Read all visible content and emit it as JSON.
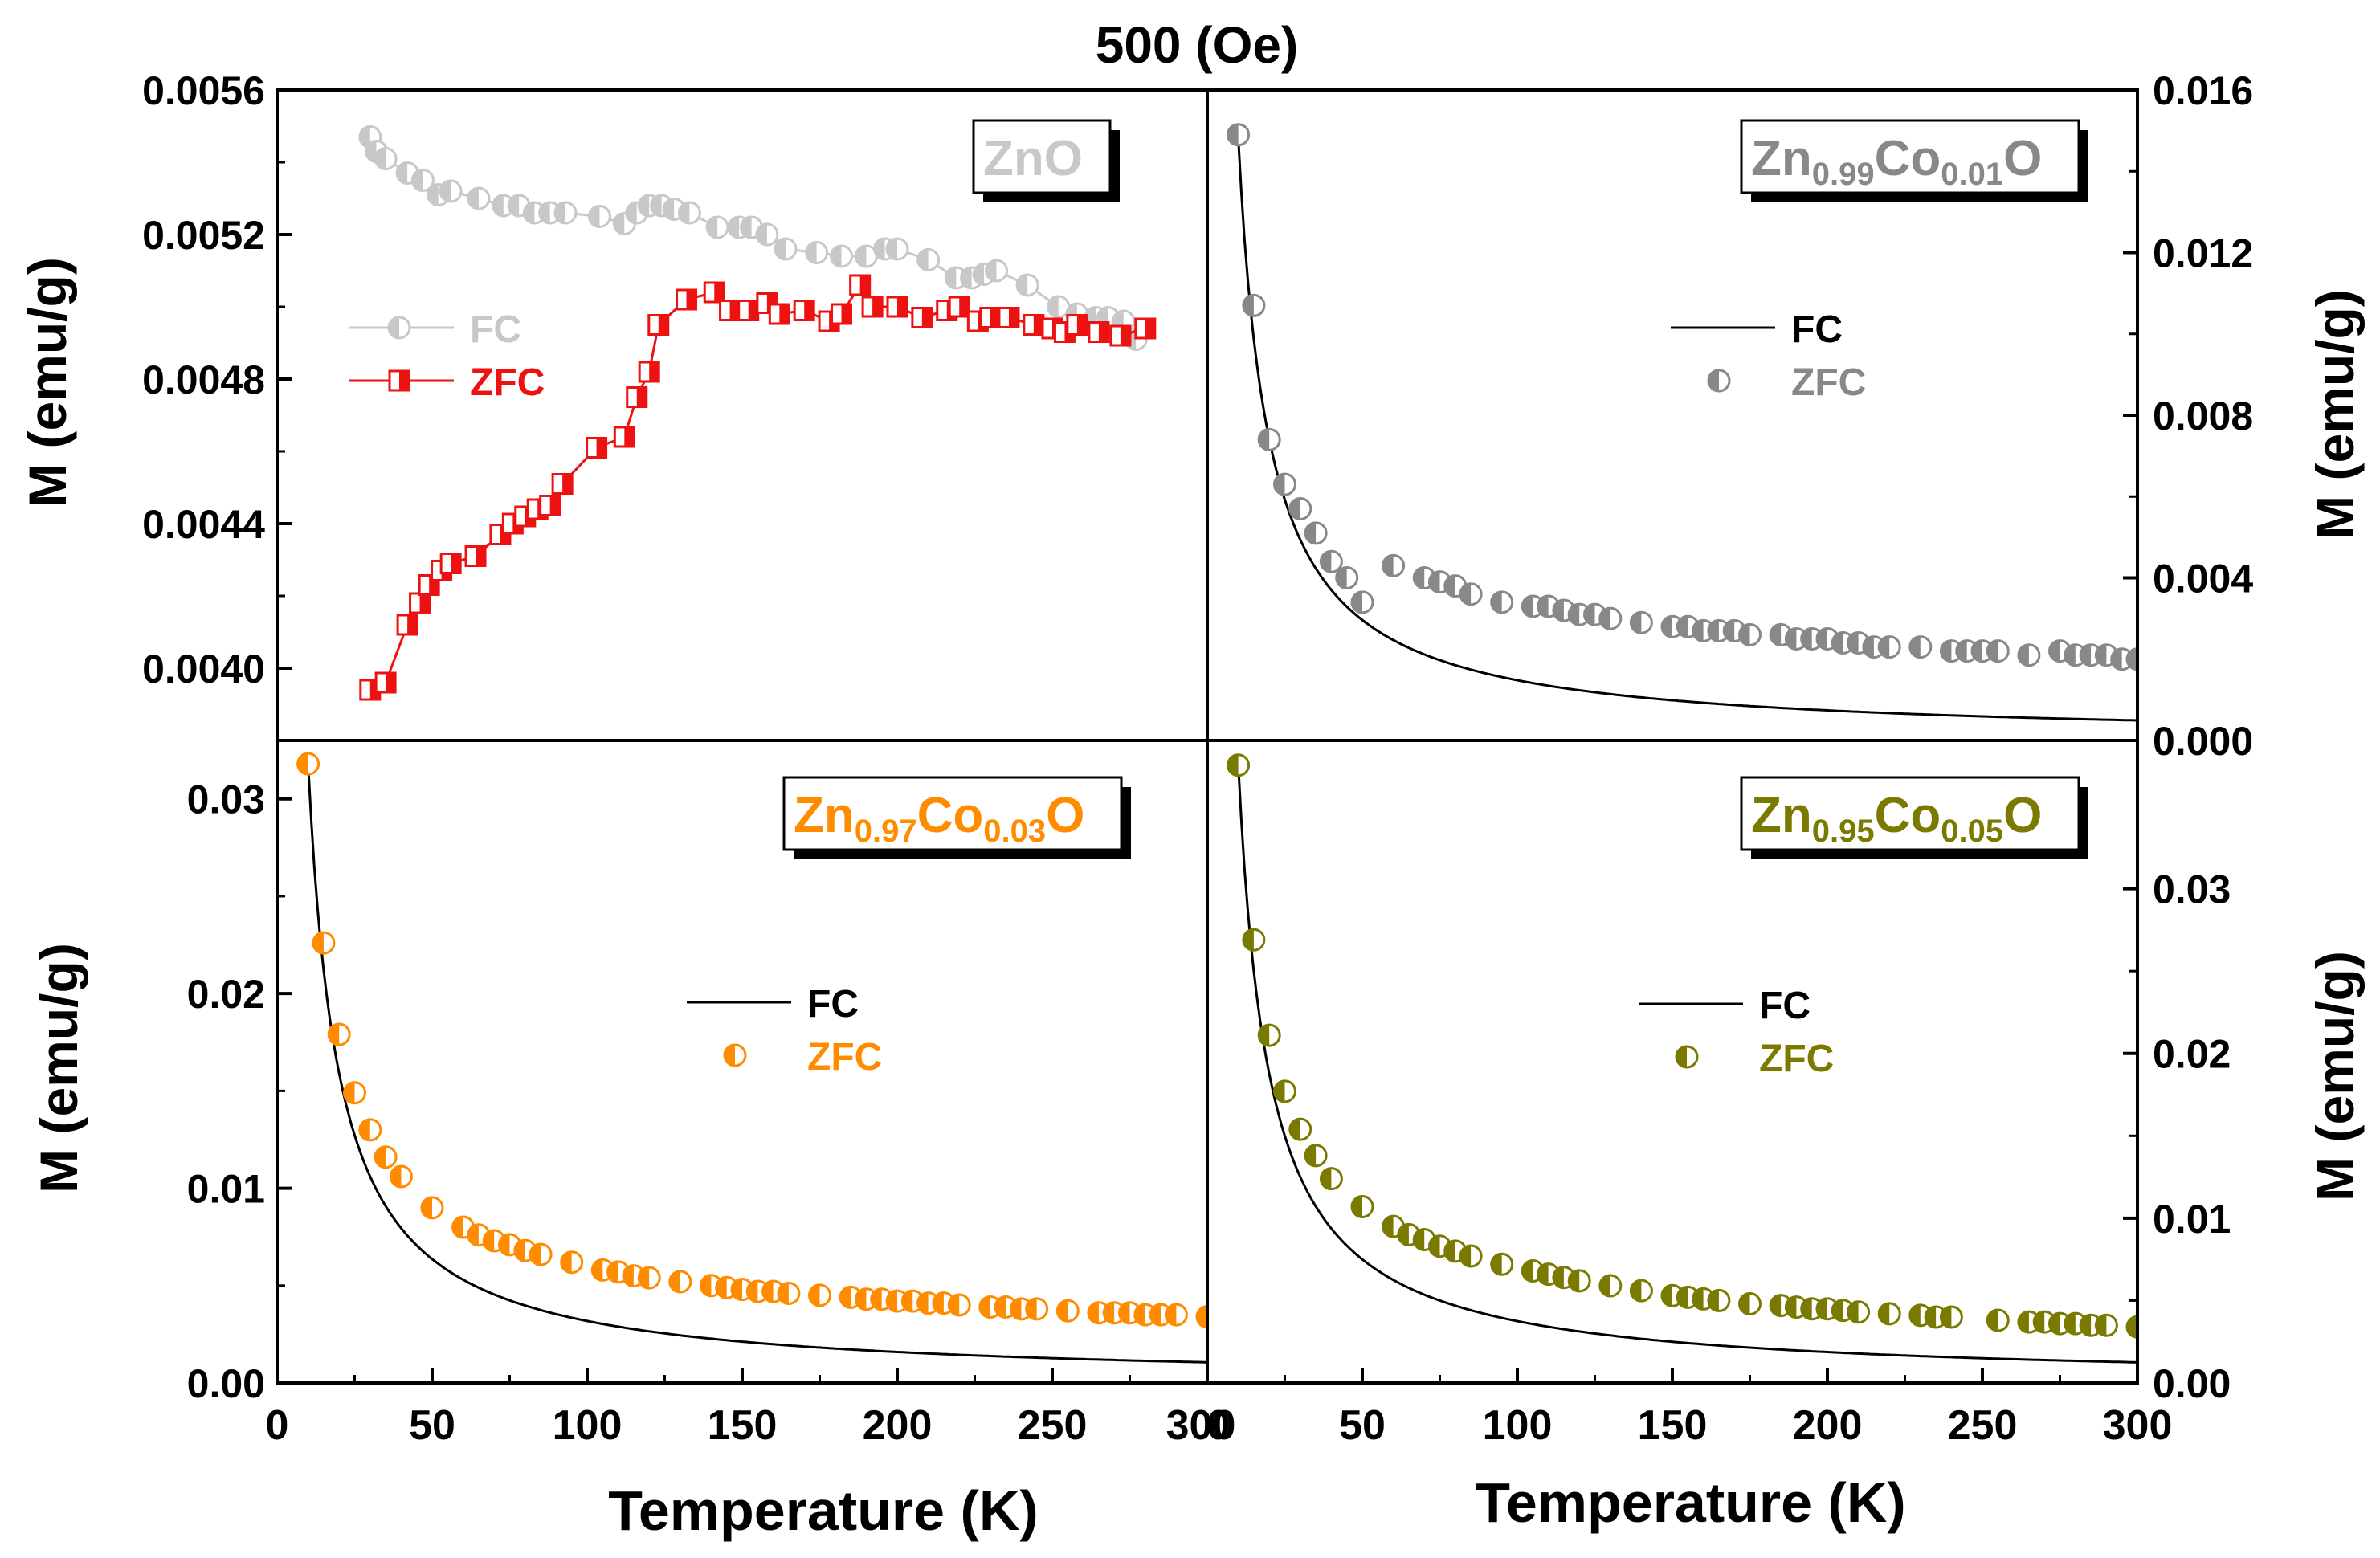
{
  "figure": {
    "title": "500 (Oe)",
    "xlabel": "Temperature (K)",
    "ylabel": "M (emu/g)"
  },
  "colors": {
    "axis": "#000000",
    "znO_fc": "#c8c8c8",
    "znO_zfc": "#ee1111",
    "co001": "#888888",
    "co003": "#ff8c00",
    "co005": "#7a7a00",
    "fit": "#000000"
  },
  "chart_data": [
    {
      "type": "line",
      "panel": "top-left",
      "label_main": "ZnO",
      "xlim": [
        0,
        300
      ],
      "ylim": [
        0.0038,
        0.0056
      ],
      "yticks": [
        "0.0040",
        "0.0044",
        "0.0048",
        "0.0052",
        "0.0056"
      ],
      "ytick_values": [
        0.004,
        0.0044,
        0.0048,
        0.0052,
        0.0056
      ],
      "xlabel": "",
      "ylabel": "M (emu/g)",
      "legend_position": "upper-left",
      "series": [
        {
          "name": "FC",
          "marker": "circle-half",
          "line": true,
          "x": [
            30,
            32,
            35,
            42,
            47,
            52,
            56,
            65,
            73,
            78,
            83,
            88,
            93,
            104,
            112,
            116,
            120,
            124,
            128,
            133,
            142,
            149,
            153,
            158,
            164,
            174,
            182,
            190,
            196,
            200,
            210,
            219,
            224,
            228,
            232,
            242,
            252,
            258,
            264,
            268,
            273,
            277
          ],
          "y": [
            0.00547,
            0.00543,
            0.00541,
            0.00537,
            0.00535,
            0.00531,
            0.00532,
            0.0053,
            0.00528,
            0.00528,
            0.00526,
            0.00526,
            0.00526,
            0.00525,
            0.00523,
            0.00526,
            0.00528,
            0.00528,
            0.00527,
            0.00526,
            0.00522,
            0.00522,
            0.00522,
            0.0052,
            0.00516,
            0.00515,
            0.00514,
            0.00514,
            0.00516,
            0.00516,
            0.00513,
            0.00508,
            0.00508,
            0.00509,
            0.0051,
            0.00506,
            0.005,
            0.00498,
            0.00497,
            0.00497,
            0.00496,
            0.00491
          ]
        },
        {
          "name": "ZFC",
          "marker": "square-half",
          "line": true,
          "x": [
            30,
            35,
            42,
            46,
            49,
            53,
            56,
            64,
            72,
            76,
            80,
            84,
            88,
            92,
            103,
            112,
            116,
            120,
            123,
            132,
            141,
            146,
            152,
            158,
            162,
            170,
            178,
            182,
            188,
            192,
            200,
            208,
            216,
            220,
            226,
            230,
            236,
            244,
            250,
            254,
            258,
            265,
            272,
            280
          ],
          "y": [
            0.00394,
            0.00396,
            0.00412,
            0.00418,
            0.00423,
            0.00427,
            0.00429,
            0.00431,
            0.00437,
            0.0044,
            0.00442,
            0.00444,
            0.00445,
            0.00451,
            0.00461,
            0.00464,
            0.00475,
            0.00482,
            0.00495,
            0.00502,
            0.00504,
            0.00499,
            0.00499,
            0.00501,
            0.00498,
            0.00499,
            0.00496,
            0.00498,
            0.00506,
            0.005,
            0.005,
            0.00497,
            0.00499,
            0.005,
            0.00496,
            0.00497,
            0.00497,
            0.00495,
            0.00494,
            0.00493,
            0.00495,
            0.00493,
            0.00492,
            0.00494
          ]
        }
      ]
    },
    {
      "type": "line",
      "panel": "top-right",
      "label_main": "Zn",
      "label_sub1": "0.99",
      "label_mid": "Co",
      "label_sub2": "0.01",
      "label_end": "O",
      "xlim": [
        0,
        300
      ],
      "ylim": [
        0,
        0.016
      ],
      "yticks": [
        "0.000",
        "0.004",
        "0.008",
        "0.012",
        "0.016"
      ],
      "ytick_values": [
        0.0,
        0.004,
        0.008,
        0.012,
        0.016
      ],
      "xlabel": "Temperature (K)",
      "xticks": [
        "0",
        "50",
        "100",
        "150",
        "200",
        "250",
        "300"
      ],
      "xtick_values": [
        0,
        50,
        100,
        150,
        200,
        250,
        300
      ],
      "ylabel": "M (emu/g)",
      "legend_position": "center",
      "series": [
        {
          "name": "FC",
          "marker": "none",
          "line": true,
          "model": {
            "A": 0.1481,
            "k": 0.0
          }
        },
        {
          "name": "ZFC",
          "marker": "circle-half",
          "line": false,
          "x": [
            10,
            15,
            20,
            25,
            30,
            35,
            40,
            45,
            50,
            60,
            70,
            75,
            80,
            85,
            95,
            105,
            110,
            115,
            120,
            125,
            130,
            140,
            150,
            155,
            160,
            165,
            170,
            175,
            185,
            190,
            195,
            200,
            205,
            210,
            215,
            220,
            230,
            240,
            245,
            250,
            255,
            265,
            275,
            280,
            285,
            290,
            295,
            300
          ],
          "y": [
            0.0149,
            0.0107,
            0.0074,
            0.0063,
            0.0057,
            0.0051,
            0.0044,
            0.004,
            0.0034,
            0.0043,
            0.004,
            0.0039,
            0.0038,
            0.0036,
            0.0034,
            0.0033,
            0.0033,
            0.0032,
            0.0031,
            0.0031,
            0.003,
            0.0029,
            0.0028,
            0.0028,
            0.0027,
            0.0027,
            0.0027,
            0.0026,
            0.0026,
            0.0025,
            0.0025,
            0.0025,
            0.0024,
            0.0024,
            0.0023,
            0.0023,
            0.0023,
            0.0022,
            0.0022,
            0.0022,
            0.0022,
            0.0021,
            0.0022,
            0.0021,
            0.0021,
            0.0021,
            0.002,
            0.002
          ]
        }
      ]
    },
    {
      "type": "line",
      "panel": "bottom-left",
      "label_main": "Zn",
      "label_sub1": "0.97",
      "label_mid": "Co",
      "label_sub2": "0.03",
      "label_end": "O",
      "xlim": [
        0,
        300
      ],
      "ylim": [
        0,
        0.033
      ],
      "yticks": [
        "0.00",
        "0.01",
        "0.02",
        "0.03"
      ],
      "ytick_values": [
        0.0,
        0.01,
        0.02,
        0.03
      ],
      "xlabel": "Temperature (K)",
      "xticks": [
        "0",
        "50",
        "100",
        "150",
        "200",
        "250",
        "300"
      ],
      "xtick_values": [
        0,
        50,
        100,
        150,
        200,
        250,
        300
      ],
      "ylabel": "M (emu/g)",
      "legend_position": "center",
      "series": [
        {
          "name": "FC",
          "marker": "none",
          "line": true,
          "model": {
            "A": 0.318,
            "k": 0.0
          }
        },
        {
          "name": "ZFC",
          "marker": "circle-half",
          "line": false,
          "x": [
            10,
            15,
            20,
            25,
            30,
            35,
            40,
            50,
            60,
            65,
            70,
            75,
            80,
            85,
            95,
            105,
            110,
            115,
            120,
            130,
            140,
            145,
            150,
            155,
            160,
            165,
            175,
            185,
            190,
            195,
            200,
            205,
            210,
            215,
            220,
            230,
            235,
            240,
            245,
            255,
            265,
            270,
            275,
            280,
            285,
            290,
            300
          ],
          "y": [
            0.0318,
            0.0226,
            0.0179,
            0.0149,
            0.013,
            0.0116,
            0.0106,
            0.009,
            0.008,
            0.0076,
            0.0073,
            0.0071,
            0.0068,
            0.0066,
            0.0062,
            0.0058,
            0.0057,
            0.0055,
            0.0054,
            0.0052,
            0.005,
            0.0049,
            0.0048,
            0.0047,
            0.0047,
            0.0046,
            0.0045,
            0.0044,
            0.0043,
            0.0043,
            0.0042,
            0.0042,
            0.0041,
            0.0041,
            0.004,
            0.0039,
            0.0039,
            0.0038,
            0.0038,
            0.0037,
            0.0036,
            0.0036,
            0.0036,
            0.0035,
            0.0035,
            0.0035,
            0.0034
          ]
        }
      ]
    },
    {
      "type": "line",
      "panel": "bottom-right",
      "label_main": "Zn",
      "label_sub1": "0.95",
      "label_mid": "Co",
      "label_sub2": "0.05",
      "label_end": "O",
      "xlim": [
        0,
        300
      ],
      "ylim": [
        0,
        0.039
      ],
      "yticks": [
        "0.00",
        "0.01",
        "0.02",
        "0.03"
      ],
      "ytick_values": [
        0.0,
        0.01,
        0.02,
        0.03
      ],
      "xlabel": "Temperature (K)",
      "xticks": [
        "0",
        "50",
        "100",
        "150",
        "200",
        "250",
        "300"
      ],
      "xtick_values": [
        0,
        50,
        100,
        150,
        200,
        250,
        300
      ],
      "ylabel": "M (emu/g)",
      "legend_position": "center",
      "series": [
        {
          "name": "FC",
          "marker": "none",
          "line": true,
          "model": {
            "A": 0.375,
            "k": 0.0
          }
        },
        {
          "name": "ZFC",
          "marker": "circle-half",
          "line": false,
          "x": [
            10,
            15,
            20,
            25,
            30,
            35,
            40,
            50,
            60,
            65,
            70,
            75,
            80,
            85,
            95,
            105,
            110,
            115,
            120,
            130,
            140,
            150,
            155,
            160,
            165,
            175,
            185,
            190,
            195,
            200,
            205,
            210,
            220,
            230,
            235,
            240,
            255,
            265,
            270,
            275,
            280,
            285,
            290,
            300
          ],
          "y": [
            0.0375,
            0.0269,
            0.0211,
            0.0177,
            0.0154,
            0.0138,
            0.0124,
            0.0107,
            0.0095,
            0.009,
            0.0087,
            0.0083,
            0.008,
            0.0077,
            0.0072,
            0.0068,
            0.0066,
            0.0064,
            0.0062,
            0.0059,
            0.0056,
            0.0053,
            0.0052,
            0.0051,
            0.005,
            0.0048,
            0.0047,
            0.0046,
            0.0045,
            0.0045,
            0.0044,
            0.0043,
            0.0042,
            0.0041,
            0.004,
            0.004,
            0.0038,
            0.0037,
            0.0037,
            0.0036,
            0.0036,
            0.0035,
            0.0035,
            0.0034
          ]
        }
      ]
    }
  ]
}
